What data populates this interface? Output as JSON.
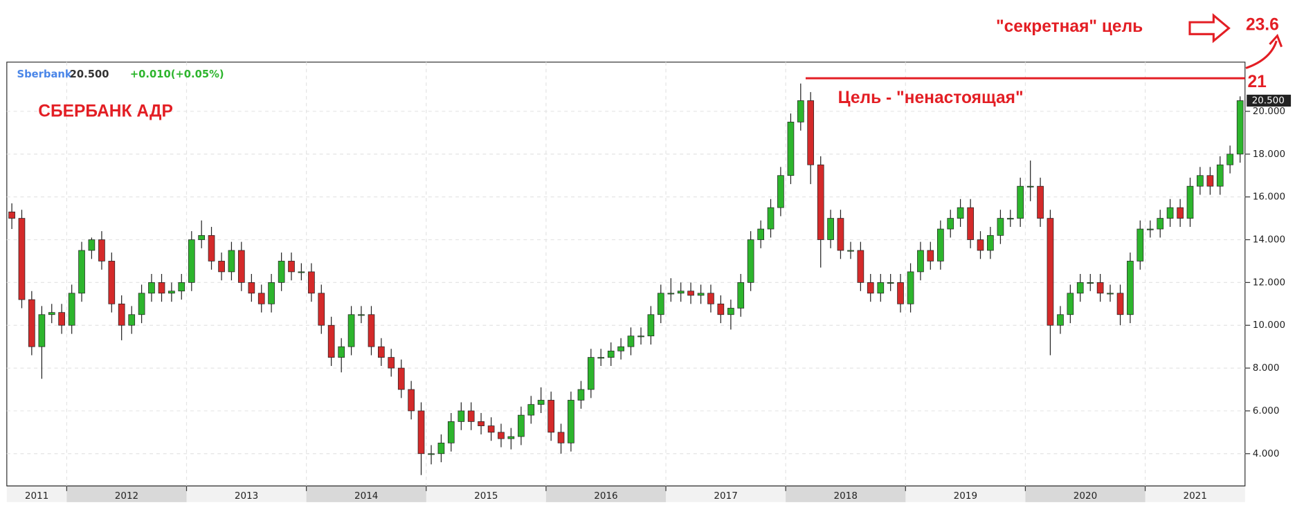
{
  "chart_data": {
    "type": "candlestick",
    "title": "СБЕРБАНК АДР",
    "ticker": "Sberbank",
    "last_price": {
      "value": 20.5,
      "label": "20.500"
    },
    "change": "+0.010(+0.05%)",
    "annotations": {
      "fake_target_text": "Цель - \"ненастоящая\"",
      "fake_target_value": "21",
      "secret_target_text": "\"секретная\" цель",
      "secret_target_value": "23.6"
    },
    "up_color": "#2db52d",
    "down_color": "#d42a2a",
    "grid": true,
    "xlim": [
      2011.5,
      2021.833
    ],
    "xticks": [
      2011,
      2012,
      2013,
      2014,
      2015,
      2016,
      2017,
      2018,
      2019,
      2020,
      2021
    ],
    "ylim": [
      2.49,
      22.3
    ],
    "yticks": [
      {
        "value": 4,
        "label": "4.000"
      },
      {
        "value": 6,
        "label": "6.000"
      },
      {
        "value": 8,
        "label": "8.000"
      },
      {
        "value": 10,
        "label": "10.000"
      },
      {
        "value": 12,
        "label": "12.000"
      },
      {
        "value": 14,
        "label": "14.000"
      },
      {
        "value": 16,
        "label": "16.000"
      },
      {
        "value": 18,
        "label": "18.000"
      },
      {
        "value": 20,
        "label": "20.000"
      }
    ],
    "x": [
      2011.542,
      2011.625,
      2011.708,
      2011.792,
      2011.875,
      2011.958,
      2012.042,
      2012.125,
      2012.208,
      2012.292,
      2012.375,
      2012.458,
      2012.542,
      2012.625,
      2012.708,
      2012.792,
      2012.875,
      2012.958,
      2013.042,
      2013.125,
      2013.208,
      2013.292,
      2013.375,
      2013.458,
      2013.542,
      2013.625,
      2013.708,
      2013.792,
      2013.875,
      2013.958,
      2014.042,
      2014.125,
      2014.208,
      2014.292,
      2014.375,
      2014.458,
      2014.542,
      2014.625,
      2014.708,
      2014.792,
      2014.875,
      2014.958,
      2015.042,
      2015.125,
      2015.208,
      2015.292,
      2015.375,
      2015.458,
      2015.542,
      2015.625,
      2015.708,
      2015.792,
      2015.875,
      2015.958,
      2016.042,
      2016.125,
      2016.208,
      2016.292,
      2016.375,
      2016.458,
      2016.542,
      2016.625,
      2016.708,
      2016.792,
      2016.875,
      2016.958,
      2017.042,
      2017.125,
      2017.208,
      2017.292,
      2017.375,
      2017.458,
      2017.542,
      2017.625,
      2017.708,
      2017.792,
      2017.875,
      2017.958,
      2018.042,
      2018.125,
      2018.208,
      2018.292,
      2018.375,
      2018.458,
      2018.542,
      2018.625,
      2018.708,
      2018.792,
      2018.875,
      2018.958,
      2019.042,
      2019.125,
      2019.208,
      2019.292,
      2019.375,
      2019.458,
      2019.542,
      2019.625,
      2019.708,
      2019.792,
      2019.875,
      2019.958,
      2020.042,
      2020.125,
      2020.208,
      2020.292,
      2020.375,
      2020.458,
      2020.542,
      2020.625,
      2020.708,
      2020.792,
      2020.875,
      2020.958,
      2021.042,
      2021.125,
      2021.208,
      2021.292,
      2021.375,
      2021.458,
      2021.542,
      2021.625,
      2021.708,
      2021.792
    ],
    "open": [
      15.3,
      15.0,
      11.2,
      9.0,
      10.5,
      10.6,
      10.0,
      11.5,
      13.5,
      14.0,
      13.0,
      11.0,
      10.0,
      10.5,
      11.5,
      12.0,
      11.5,
      11.6,
      12.0,
      14.0,
      14.2,
      13.0,
      12.5,
      13.5,
      12.0,
      11.5,
      11.0,
      12.0,
      13.0,
      12.5,
      12.5,
      11.5,
      10.0,
      8.5,
      9.0,
      10.5,
      10.5,
      9.0,
      8.5,
      8.0,
      7.0,
      6.0,
      4.0,
      4.0,
      4.5,
      5.5,
      6.0,
      5.5,
      5.3,
      5.0,
      4.7,
      4.8,
      5.8,
      6.3,
      6.5,
      5.0,
      4.5,
      6.5,
      7.0,
      8.5,
      8.5,
      8.8,
      9.0,
      9.5,
      9.5,
      10.5,
      11.5,
      11.5,
      11.6,
      11.4,
      11.5,
      11.0,
      10.5,
      10.8,
      12.0,
      14.0,
      14.5,
      15.5,
      17.0,
      19.5,
      20.5,
      17.5,
      14.0,
      15.0,
      13.5,
      13.5,
      12.0,
      11.5,
      12.0,
      12.0,
      11.0,
      12.5,
      13.5,
      13.0,
      14.5,
      15.0,
      15.5,
      14.0,
      13.5,
      14.2,
      15.0,
      15.0,
      16.5,
      16.5,
      15.0,
      10.0,
      10.5,
      11.5,
      12.0,
      12.0,
      11.5,
      11.5,
      10.5,
      13.0,
      14.5,
      14.5,
      15.0,
      15.5,
      15.0,
      16.5,
      17.0,
      16.5,
      17.5,
      18.0
    ],
    "high": [
      15.7,
      15.4,
      11.6,
      10.9,
      11.0,
      11.0,
      11.9,
      13.9,
      14.1,
      14.4,
      13.4,
      11.4,
      10.9,
      11.9,
      12.4,
      12.4,
      12.0,
      12.4,
      14.4,
      14.9,
      14.6,
      13.4,
      13.9,
      13.9,
      12.4,
      11.9,
      12.4,
      13.4,
      13.4,
      12.9,
      12.9,
      11.9,
      10.4,
      9.4,
      10.9,
      10.9,
      10.9,
      9.4,
      8.9,
      8.4,
      7.4,
      6.4,
      4.4,
      4.9,
      5.9,
      6.4,
      6.4,
      5.9,
      5.7,
      5.4,
      5.2,
      6.2,
      6.7,
      7.1,
      6.9,
      5.4,
      6.9,
      7.4,
      8.9,
      8.9,
      9.2,
      9.4,
      9.9,
      9.9,
      10.9,
      11.9,
      12.2,
      12.0,
      12.0,
      11.9,
      11.9,
      11.4,
      11.2,
      12.4,
      14.4,
      14.9,
      15.9,
      17.4,
      19.9,
      21.3,
      20.9,
      17.9,
      15.4,
      15.4,
      13.9,
      13.9,
      12.4,
      12.4,
      12.4,
      12.4,
      12.9,
      13.9,
      13.9,
      14.9,
      15.4,
      15.9,
      15.9,
      14.4,
      14.6,
      15.4,
      15.4,
      16.9,
      17.7,
      16.9,
      15.4,
      10.9,
      11.9,
      12.4,
      12.4,
      12.4,
      11.9,
      11.9,
      13.4,
      14.9,
      14.9,
      15.4,
      15.9,
      15.9,
      16.9,
      17.4,
      17.4,
      17.9,
      18.4,
      20.7
    ],
    "low": [
      14.5,
      10.8,
      8.6,
      7.5,
      10.1,
      9.6,
      9.6,
      11.1,
      13.1,
      12.6,
      10.6,
      9.3,
      9.6,
      10.1,
      11.1,
      11.1,
      11.1,
      11.2,
      11.6,
      13.6,
      12.6,
      12.1,
      12.1,
      11.6,
      11.1,
      10.6,
      10.6,
      11.6,
      12.1,
      12.1,
      11.1,
      9.6,
      8.1,
      7.8,
      8.6,
      10.1,
      8.6,
      8.1,
      7.6,
      6.6,
      5.6,
      3.0,
      3.5,
      3.6,
      4.1,
      5.1,
      5.1,
      4.9,
      4.6,
      4.3,
      4.2,
      4.4,
      5.4,
      5.9,
      4.6,
      4.0,
      4.1,
      6.1,
      6.6,
      8.1,
      8.1,
      8.4,
      8.6,
      9.1,
      9.1,
      10.1,
      11.1,
      11.1,
      11.0,
      11.0,
      10.6,
      10.1,
      9.8,
      10.4,
      11.6,
      13.6,
      14.1,
      15.1,
      16.6,
      19.1,
      16.6,
      12.7,
      13.6,
      13.1,
      13.1,
      11.6,
      11.1,
      11.1,
      11.6,
      10.6,
      10.6,
      12.1,
      12.6,
      12.6,
      14.1,
      14.6,
      13.6,
      13.1,
      13.1,
      13.8,
      14.6,
      14.6,
      15.8,
      14.6,
      8.6,
      9.6,
      10.1,
      11.1,
      11.6,
      11.1,
      11.1,
      10.0,
      10.1,
      12.6,
      14.1,
      14.1,
      14.6,
      14.6,
      14.6,
      16.1,
      16.1,
      16.1,
      17.1,
      17.6
    ],
    "close": [
      15.0,
      11.2,
      9.0,
      10.5,
      10.6,
      10.0,
      11.5,
      13.5,
      14.0,
      13.0,
      11.0,
      10.0,
      10.5,
      11.5,
      12.0,
      11.5,
      11.6,
      12.0,
      14.0,
      14.2,
      13.0,
      12.5,
      13.5,
      12.0,
      11.5,
      11.0,
      12.0,
      13.0,
      12.5,
      12.5,
      11.5,
      10.0,
      8.5,
      9.0,
      10.5,
      10.5,
      9.0,
      8.5,
      8.0,
      7.0,
      6.0,
      4.0,
      4.0,
      4.5,
      5.5,
      6.0,
      5.5,
      5.3,
      5.0,
      4.7,
      4.8,
      5.8,
      6.3,
      6.5,
      5.0,
      4.5,
      6.5,
      7.0,
      8.5,
      8.5,
      8.8,
      9.0,
      9.5,
      9.5,
      10.5,
      11.5,
      11.5,
      11.6,
      11.4,
      11.5,
      11.0,
      10.5,
      10.8,
      12.0,
      14.0,
      14.5,
      15.5,
      17.0,
      19.5,
      20.5,
      17.5,
      14.0,
      15.0,
      13.5,
      13.5,
      12.0,
      11.5,
      12.0,
      12.0,
      11.0,
      12.5,
      13.5,
      13.0,
      14.5,
      15.0,
      15.5,
      14.0,
      13.5,
      14.2,
      15.0,
      15.0,
      16.5,
      16.5,
      15.0,
      10.0,
      10.5,
      11.5,
      12.0,
      12.0,
      11.5,
      11.5,
      10.5,
      13.0,
      14.5,
      14.5,
      15.0,
      15.5,
      15.0,
      16.5,
      17.0,
      16.5,
      17.5,
      18.0,
      20.5
    ]
  }
}
